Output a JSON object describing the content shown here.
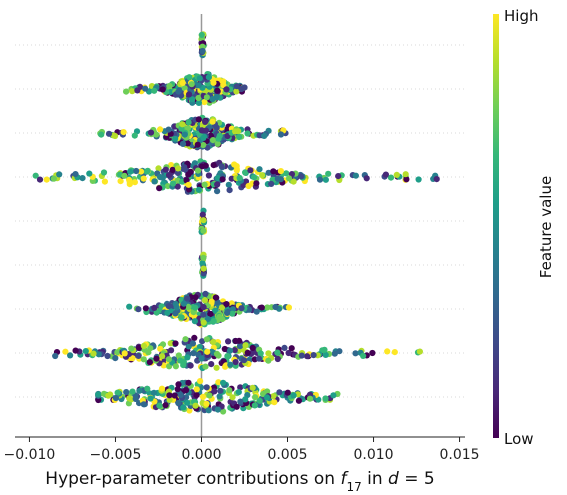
{
  "chart_data": {
    "type": "scatter",
    "subtype": "shap-beeswarm",
    "title": "",
    "xlabel": "Hyper-parameter contributions on",
    "xlabel_math": "f",
    "xlabel_math_sub": "17",
    "xlabel_tail": "in",
    "xlabel_var": "d",
    "xlabel_eq": "= 5",
    "xlim": [
      -0.0102,
      0.0152
    ],
    "x_ticks": [
      -0.01,
      -0.005,
      0.0,
      0.005,
      0.01,
      0.015
    ],
    "x_tick_labels": [
      "−0.010",
      "−0.005",
      "0.000",
      "0.005",
      "0.010",
      "0.015"
    ],
    "grid": "dotted-horizontal",
    "zero_line": 0.0,
    "features": [
      {
        "row": 1,
        "min": 0.0,
        "max": 0.00015,
        "spread": 6e-05
      },
      {
        "row": 2,
        "min": -0.0046,
        "max": 0.0025,
        "spread": 0.0009
      },
      {
        "row": 3,
        "min": -0.0059,
        "max": 0.0051,
        "spread": 0.0011
      },
      {
        "row": 4,
        "min": -0.0098,
        "max": 0.0141,
        "spread": 0.0028
      },
      {
        "row": 5,
        "min": 0.0,
        "max": 0.00015,
        "spread": 6e-05
      },
      {
        "row": 6,
        "min": 0.0,
        "max": 0.00015,
        "spread": 6e-05
      },
      {
        "row": 7,
        "min": -0.0042,
        "max": 0.0054,
        "spread": 0.0011
      },
      {
        "row": 8,
        "min": -0.0085,
        "max": 0.0131,
        "spread": 0.0028
      },
      {
        "row": 9,
        "min": -0.006,
        "max": 0.0079,
        "spread": 0.0026
      }
    ],
    "colorbar": {
      "label": "Feature value",
      "high": "High",
      "low": "Low",
      "colormap": "viridis"
    }
  },
  "colors": {
    "viridis": [
      "#440154",
      "#482878",
      "#3e4989",
      "#31688e",
      "#26828e",
      "#1f9e89",
      "#35b779",
      "#6ece58",
      "#b5de2b",
      "#fde725"
    ],
    "zero_line": "#999999",
    "grid": "#cccccc",
    "axis": "#222222"
  }
}
